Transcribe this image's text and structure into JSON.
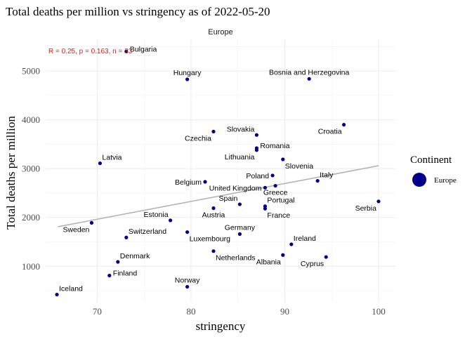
{
  "chart_data": {
    "type": "scatter",
    "title": "Total deaths per million vs stringency as of 2022-05-20",
    "facet_label": "Europe",
    "xlabel": "stringency",
    "ylabel": "Total deaths per million",
    "xlim": [
      64.5,
      101.8
    ],
    "ylim": [
      270,
      5650
    ],
    "x_ticks": [
      70,
      80,
      90,
      100
    ],
    "y_ticks": [
      1000,
      2000,
      3000,
      4000,
      5000
    ],
    "grid": true,
    "annotation": "R = 0.25, p = 0.163, n = 33",
    "annotation_color": "#e41a1c",
    "point_color": "#00008b",
    "trend_color": "#b4b4b4",
    "trend_line": {
      "x": [
        65.8,
        100
      ],
      "y": [
        1810,
        3060
      ]
    },
    "legend": {
      "title": "Continent",
      "entries": [
        "Europe"
      ],
      "position": "right"
    },
    "points": [
      {
        "label": "Bulgaria",
        "x": 73.1,
        "y": 5400,
        "label_pos": "right"
      },
      {
        "label": "Hungary",
        "x": 79.6,
        "y": 4830,
        "label_pos": "above"
      },
      {
        "label": "Bosnia and Herzegovina",
        "x": 92.6,
        "y": 4840,
        "label_pos": "above"
      },
      {
        "label": "Croatia",
        "x": 96.3,
        "y": 3900,
        "label_pos": "below-left"
      },
      {
        "label": "Slovakia",
        "x": 87.0,
        "y": 3690,
        "label_pos": "above-left"
      },
      {
        "label": "Czechia",
        "x": 82.4,
        "y": 3760,
        "label_pos": "below-left"
      },
      {
        "label": "Romania",
        "x": 87.0,
        "y": 3420,
        "label_pos": "right"
      },
      {
        "label": "Lithuania",
        "x": 87.0,
        "y": 3380,
        "label_pos": "below-left"
      },
      {
        "label": "Latvia",
        "x": 70.3,
        "y": 3110,
        "label_pos": "above-right"
      },
      {
        "label": "Slovenia",
        "x": 89.8,
        "y": 3190,
        "label_pos": "below-right"
      },
      {
        "label": "Poland",
        "x": 88.7,
        "y": 2860,
        "label_pos": "left"
      },
      {
        "label": "Italy",
        "x": 93.5,
        "y": 2750,
        "label_pos": "above-right"
      },
      {
        "label": "Belgium",
        "x": 81.5,
        "y": 2730,
        "label_pos": "left"
      },
      {
        "label": "Greece",
        "x": 89.0,
        "y": 2650,
        "label_pos": "below"
      },
      {
        "label": "United Kingdom",
        "x": 87.9,
        "y": 2610,
        "label_pos": "left"
      },
      {
        "label": "Portugal",
        "x": 87.9,
        "y": 2230,
        "label_pos": "above-right"
      },
      {
        "label": "France",
        "x": 87.9,
        "y": 2180,
        "label_pos": "below-right"
      },
      {
        "label": "Spain",
        "x": 85.2,
        "y": 2270,
        "label_pos": "above-left"
      },
      {
        "label": "Serbia",
        "x": 100.0,
        "y": 2330,
        "label_pos": "below-left"
      },
      {
        "label": "Austria",
        "x": 82.4,
        "y": 2190,
        "label_pos": "below"
      },
      {
        "label": "Estonia",
        "x": 77.8,
        "y": 1940,
        "label_pos": "above-left"
      },
      {
        "label": "Sweden",
        "x": 69.4,
        "y": 1890,
        "label_pos": "below-left"
      },
      {
        "label": "Switzerland",
        "x": 73.1,
        "y": 1590,
        "label_pos": "above-right"
      },
      {
        "label": "Luxembourg",
        "x": 79.6,
        "y": 1700,
        "label_pos": "below-right"
      },
      {
        "label": "Germany",
        "x": 85.2,
        "y": 1660,
        "label_pos": "above"
      },
      {
        "label": "Ireland",
        "x": 90.7,
        "y": 1450,
        "label_pos": "above-right"
      },
      {
        "label": "Netherlands",
        "x": 82.4,
        "y": 1310,
        "label_pos": "below-right"
      },
      {
        "label": "Albania",
        "x": 89.8,
        "y": 1230,
        "label_pos": "below-left"
      },
      {
        "label": "Cyprus",
        "x": 94.4,
        "y": 1190,
        "label_pos": "below-left"
      },
      {
        "label": "Denmark",
        "x": 72.2,
        "y": 1090,
        "label_pos": "above-right"
      },
      {
        "label": "Finland",
        "x": 71.3,
        "y": 810,
        "label_pos": "right"
      },
      {
        "label": "Norway",
        "x": 79.6,
        "y": 580,
        "label_pos": "above"
      },
      {
        "label": "Iceland",
        "x": 65.7,
        "y": 420,
        "label_pos": "above-right"
      }
    ]
  }
}
